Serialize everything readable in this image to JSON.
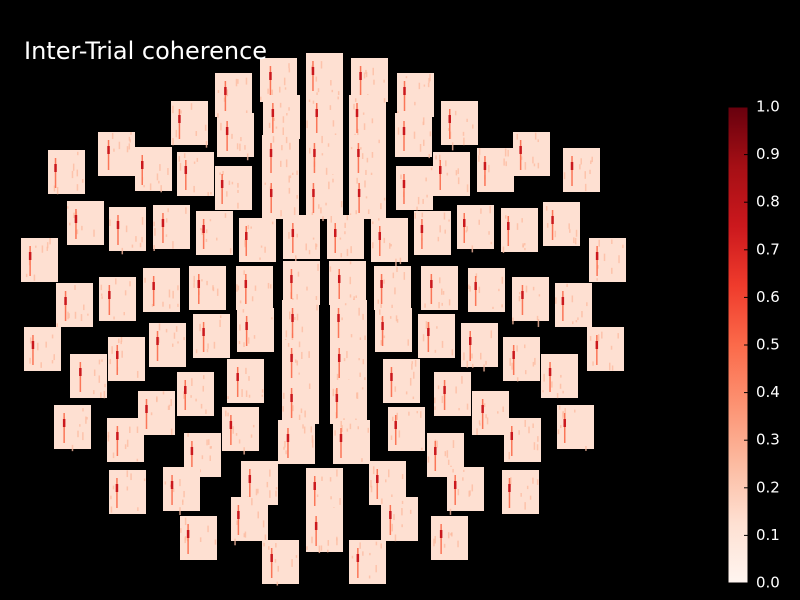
{
  "chart_data": {
    "type": "topo",
    "title": "Inter-Trial coherence",
    "colorbar": {
      "clim": [
        0,
        1
      ],
      "ticks": [
        {
          "value": 0,
          "label": "0.0"
        },
        0.1,
        0.2,
        0.3,
        0.4,
        0.5,
        0.6,
        0.7,
        0.8,
        0.9,
        {
          "value": 1,
          "label": "1.0"
        }
      ],
      "colormap": [
        "#fff5f0",
        "#fee0d2",
        "#fcbba1",
        "#fc9272",
        "#fb6a4a",
        "#ef3b2c",
        "#cb181d",
        "#a50f15",
        "#67000d"
      ]
    }
  }
}
